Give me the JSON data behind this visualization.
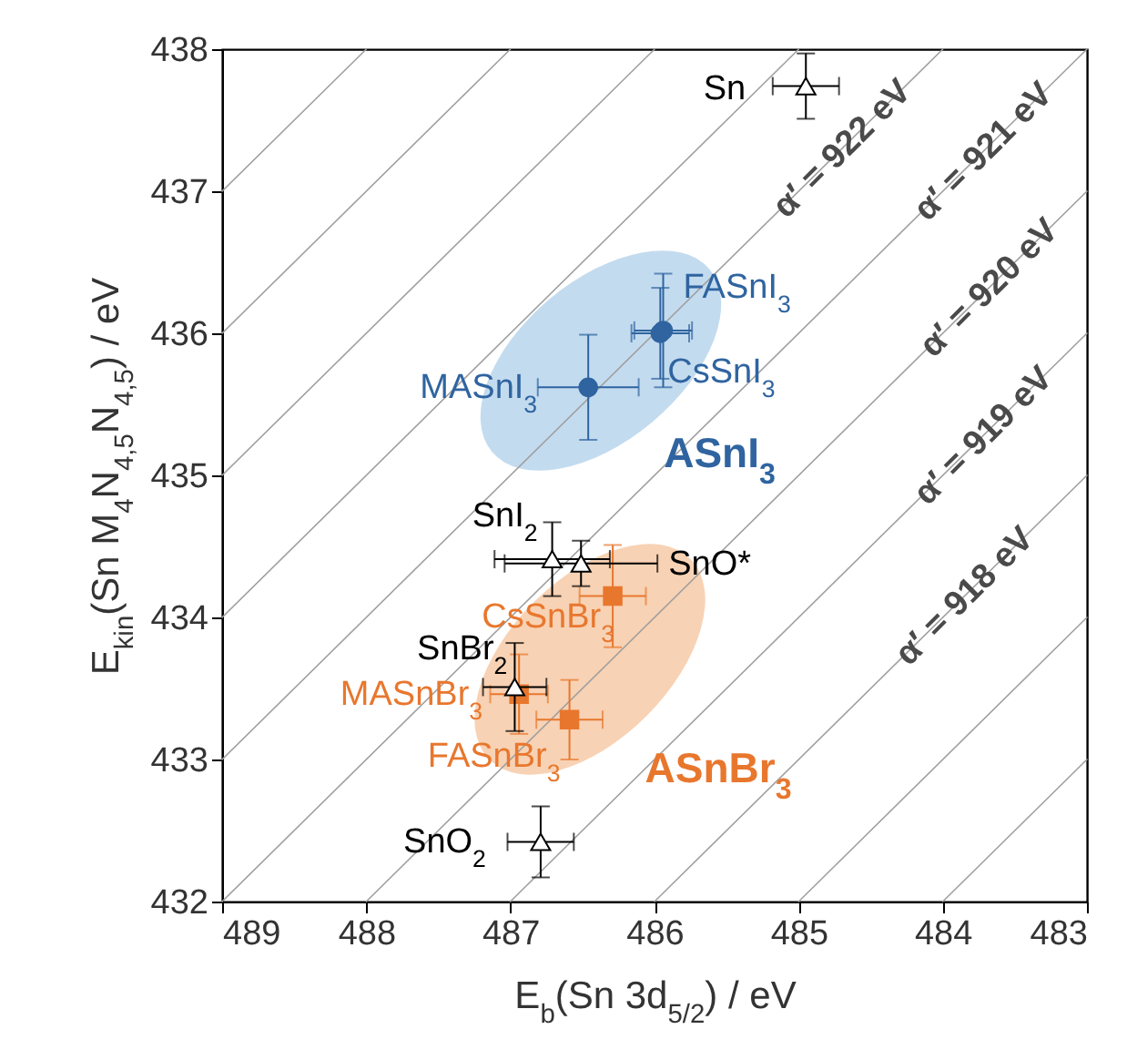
{
  "chart_data": {
    "type": "scatter",
    "xlabel": "E$_{b}$(Sn 3d$_{5/2}$) / eV",
    "ylabel": "E$_{kin}$(Sn M$_{4}$N$_{4,5}$N$_{4,5}$) / eV",
    "xlim": [
      489,
      483
    ],
    "ylim": [
      432,
      438
    ],
    "xticks": [
      489,
      488,
      487,
      486,
      485,
      484,
      483
    ],
    "yticks": [
      432,
      433,
      434,
      435,
      436,
      437,
      438
    ],
    "grid": false,
    "series": [
      {
        "type": "line",
        "color": "#a0a0a0",
        "x": [
          484,
          483
        ],
        "values": [
          432,
          433
        ]
      },
      {
        "type": "line",
        "color": "#a0a0a0",
        "x": [
          485,
          483
        ],
        "values": [
          432,
          434
        ]
      },
      {
        "type": "line",
        "color": "#a0a0a0",
        "x": [
          486,
          483
        ],
        "values": [
          432,
          435
        ]
      },
      {
        "type": "line",
        "color": "#a0a0a0",
        "x": [
          487,
          483
        ],
        "values": [
          432,
          436
        ]
      },
      {
        "type": "line",
        "color": "#a0a0a0",
        "x": [
          488,
          483
        ],
        "values": [
          432,
          437
        ]
      },
      {
        "type": "line",
        "color": "#a0a0a0",
        "x": [
          489,
          483
        ],
        "values": [
          432,
          438
        ]
      },
      {
        "type": "line",
        "color": "#a0a0a0",
        "x": [
          489,
          484
        ],
        "values": [
          433,
          438
        ]
      },
      {
        "type": "line",
        "color": "#a0a0a0",
        "x": [
          489,
          485
        ],
        "values": [
          434,
          438
        ]
      },
      {
        "type": "line",
        "color": "#a0a0a0",
        "x": [
          489,
          486
        ],
        "values": [
          435,
          438
        ]
      },
      {
        "type": "line",
        "color": "#a0a0a0",
        "x": [
          489,
          487
        ],
        "values": [
          436,
          438
        ]
      },
      {
        "type": "line",
        "color": "#a0a0a0",
        "x": [
          489,
          488
        ],
        "values": [
          437,
          438
        ]
      },
      {
        "name": "ASnI$_{3}$",
        "color": "#2f64a0",
        "marker": "circle",
        "x": [
          485.94,
          485.96,
          486.46
        ],
        "values": [
          436.02,
          436.0,
          435.62
        ],
        "errors": [
          0.4,
          0.32,
          0.37
        ],
        "xerrors": [
          0.2,
          0.2,
          0.35
        ]
      },
      {
        "name": "ASnBr$_{3}$",
        "color": "#e8772e",
        "marker": "square",
        "x": [
          486.29,
          486.94,
          486.59
        ],
        "values": [
          434.15,
          433.46,
          433.28
        ],
        "errors": [
          0.36,
          0.28,
          0.28
        ],
        "xerrors": [
          0.23,
          0.2,
          0.23
        ]
      },
      {
        "color": "#000000",
        "marker": "triangle",
        "x": [
          484.95,
          486.71,
          486.51,
          486.97,
          486.79
        ],
        "values": [
          437.74,
          434.41,
          434.38,
          433.51,
          432.42
        ],
        "errors": [
          0.23,
          0.26,
          0.16,
          0.31,
          0.25
        ],
        "xerrors": [
          0.23,
          0.4,
          0.53,
          0.22,
          0.23
        ]
      }
    ],
    "annotations": [
      {
        "text": "Sn",
        "x": 484.95,
        "y": 437.74
      },
      {
        "text": "FASnI$_{3}$",
        "x": 485.94,
        "y": 436.02
      },
      {
        "text": "CsSnI$_{3}$",
        "x": 485.96,
        "y": 436.0
      },
      {
        "text": "MASnI$_{3}$",
        "x": 486.46,
        "y": 435.62
      },
      {
        "text": "SnI$_{2}$",
        "x": 486.71,
        "y": 434.41
      },
      {
        "text": "SnO*",
        "x": 486.51,
        "y": 434.38
      },
      {
        "text": "CsSnBr$_{3}$",
        "x": 486.29,
        "y": 434.15
      },
      {
        "text": "SnBr$_{2}$",
        "x": 486.97,
        "y": 433.51
      },
      {
        "text": "MASnBr$_{3}$",
        "x": 486.94,
        "y": 433.46
      },
      {
        "text": "FASnBr$_{3}$",
        "x": 486.59,
        "y": 433.28
      },
      {
        "text": "SnO$_{2}$",
        "x": 486.79,
        "y": 432.42
      },
      {
        "text": "α′ = 922 eV",
        "x": 484.7,
        "y": 437.3
      },
      {
        "text": "α′ = 921 eV",
        "x": 483.72,
        "y": 437.28
      },
      {
        "text": "α′ = 920 eV",
        "x": 483.68,
        "y": 436.32
      },
      {
        "text": "α′ = 919 eV",
        "x": 483.72,
        "y": 435.28
      },
      {
        "text": "α′ = 918 eV",
        "x": 483.85,
        "y": 434.15
      }
    ]
  }
}
